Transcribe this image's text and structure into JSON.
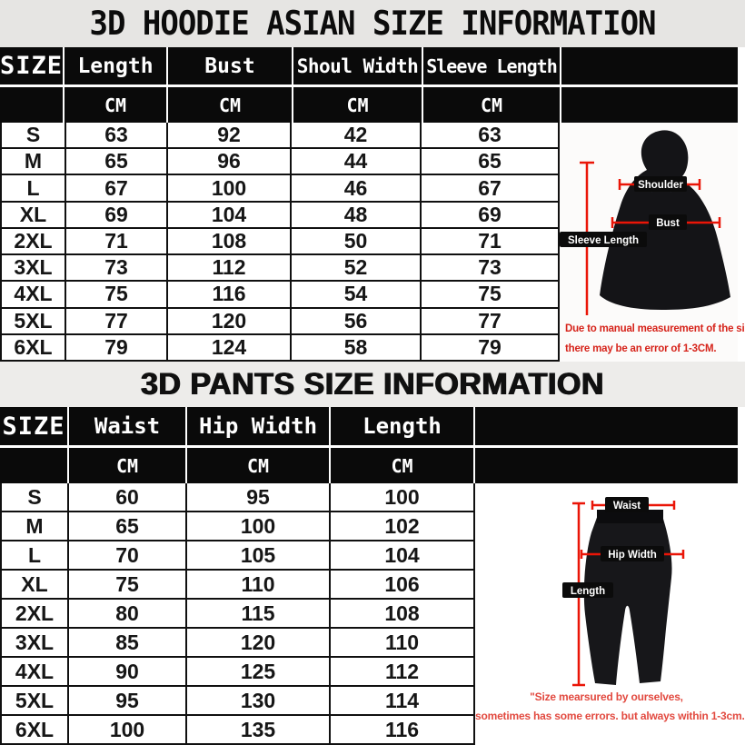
{
  "hoodie_section": {
    "title": "3D HOODIE ASIAN SIZE INFORMATION",
    "table": {
      "columns": [
        "SIZE",
        "Length",
        "Bust",
        "Shoul Width",
        "Sleeve Length"
      ],
      "unit_row": [
        "",
        "CM",
        "CM",
        "CM",
        "CM"
      ],
      "rows": [
        {
          "size": "S",
          "values": [
            "63",
            "92",
            "42",
            "63"
          ]
        },
        {
          "size": "M",
          "values": [
            "65",
            "96",
            "44",
            "65"
          ]
        },
        {
          "size": "L",
          "values": [
            "67",
            "100",
            "46",
            "67"
          ]
        },
        {
          "size": "XL",
          "values": [
            "69",
            "104",
            "48",
            "69"
          ]
        },
        {
          "size": "2XL",
          "values": [
            "71",
            "108",
            "50",
            "71"
          ]
        },
        {
          "size": "3XL",
          "values": [
            "73",
            "112",
            "52",
            "73"
          ]
        },
        {
          "size": "4XL",
          "values": [
            "75",
            "116",
            "54",
            "75"
          ]
        },
        {
          "size": "5XL",
          "values": [
            "77",
            "120",
            "56",
            "77"
          ]
        },
        {
          "size": "6XL",
          "values": [
            "79",
            "124",
            "58",
            "79"
          ]
        }
      ]
    },
    "diagram": {
      "shoulder_label": "Shoulder",
      "bust_label": "Bust",
      "sleeve_label": "Sleeve Length",
      "note_line1": "Due to manual measurement of the size",
      "note_line2": "there may be an error of 1-3CM."
    }
  },
  "pants_section": {
    "title": "3D PANTS SIZE INFORMATION",
    "table": {
      "columns": [
        "SIZE",
        "Waist",
        "Hip Width",
        "Length"
      ],
      "unit_row": [
        "",
        "CM",
        "CM",
        "CM"
      ],
      "rows": [
        {
          "size": "S",
          "values": [
            "60",
            "95",
            "100"
          ]
        },
        {
          "size": "M",
          "values": [
            "65",
            "100",
            "102"
          ]
        },
        {
          "size": "L",
          "values": [
            "70",
            "105",
            "104"
          ]
        },
        {
          "size": "XL",
          "values": [
            "75",
            "110",
            "106"
          ]
        },
        {
          "size": "2XL",
          "values": [
            "80",
            "115",
            "108"
          ]
        },
        {
          "size": "3XL",
          "values": [
            "85",
            "120",
            "110"
          ]
        },
        {
          "size": "4XL",
          "values": [
            "90",
            "125",
            "112"
          ]
        },
        {
          "size": "5XL",
          "values": [
            "95",
            "130",
            "114"
          ]
        },
        {
          "size": "6XL",
          "values": [
            "100",
            "135",
            "116"
          ]
        }
      ]
    },
    "diagram": {
      "waist_label": "Waist",
      "hip_label": "Hip Width",
      "length_label": "Length",
      "note_line1": "\"Size mearsured by ourselves,",
      "note_line2": "sometimes has some errors. but always within 1-3cm.\""
    }
  },
  "colors": {
    "table_black": "#0a0a0a",
    "accent_red_line": "#ea1507",
    "note_red_hoodie": "#d6231a",
    "note_red_pants": "#e24a40",
    "title_band_gray": "#e6e5e3"
  }
}
